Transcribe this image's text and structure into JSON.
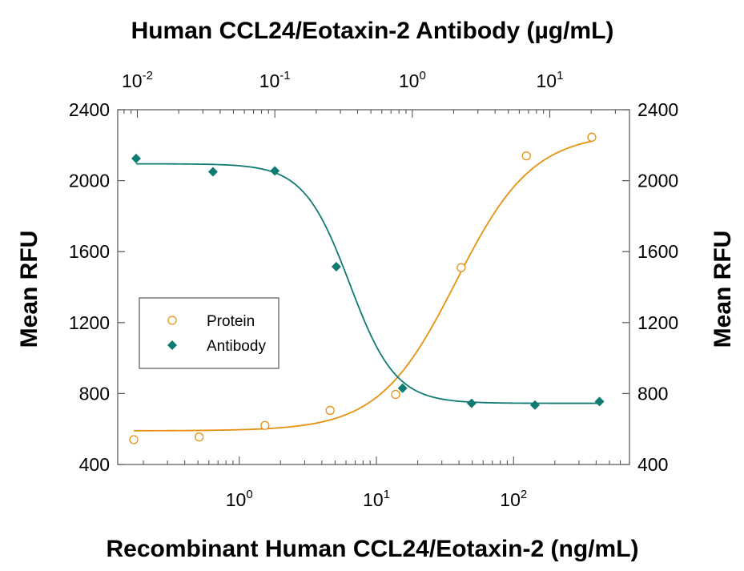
{
  "chart_data": {
    "type": "scatter",
    "title_top": "Human CCL24/Eotaxin-2 Antibody (µg/mL)",
    "xlabel": "Recombinant Human CCL24/Eotaxin-2 (ng/mL)",
    "ylabel_left": "Mean RFU",
    "ylabel_right": "Mean RFU",
    "y_axis": {
      "min": 400,
      "max": 2400,
      "ticks": [
        400,
        800,
        1200,
        1600,
        2000,
        2400
      ],
      "tick_labels": [
        "400",
        "800",
        "1200",
        "1600",
        "2000",
        "2400"
      ]
    },
    "x_bottom_axis": {
      "scale": "log",
      "range": [
        0.13,
        700
      ],
      "ticks": [
        1,
        10,
        100
      ],
      "tick_labels": [
        {
          "base": "10",
          "exp": "0"
        },
        {
          "base": "10",
          "exp": "1"
        },
        {
          "base": "10",
          "exp": "2"
        }
      ]
    },
    "x_top_axis": {
      "scale": "log",
      "range": [
        0.0072,
        38
      ],
      "ticks": [
        0.01,
        0.1,
        1,
        10
      ],
      "tick_labels": [
        {
          "base": "10",
          "exp": "-2"
        },
        {
          "base": "10",
          "exp": "-1"
        },
        {
          "base": "10",
          "exp": "0"
        },
        {
          "base": "10",
          "exp": "1"
        }
      ]
    },
    "legend": {
      "placement": "center-left",
      "entries": [
        {
          "label": "Protein",
          "color": "#E8900F",
          "marker": "open-circle"
        },
        {
          "label": "Antibody",
          "color": "#0E7A72",
          "marker": "filled-diamond"
        }
      ]
    },
    "series": [
      {
        "name": "Protein",
        "axis": "bottom",
        "color": "#E8900F",
        "marker": "open-circle",
        "x": [
          0.17,
          0.51,
          1.54,
          4.6,
          13.8,
          41.5,
          124,
          372
        ],
        "y": [
          540,
          555,
          620,
          705,
          795,
          1510,
          2140,
          2245
        ]
      },
      {
        "name": "Antibody",
        "axis": "top",
        "color": "#0E7A72",
        "marker": "filled-diamond",
        "x": [
          0.0098,
          0.0355,
          0.1,
          0.28,
          0.85,
          2.7,
          7.8,
          23
        ],
        "y": [
          2125,
          2050,
          2055,
          1515,
          830,
          745,
          735,
          755
        ]
      }
    ],
    "fit_curves": [
      {
        "series": "Protein",
        "axis": "bottom",
        "color": "#E8900F",
        "bottom": 590,
        "top": 2270,
        "ec50": 38,
        "hill": 1.55
      },
      {
        "series": "Antibody",
        "axis": "top",
        "color": "#0E7A72",
        "bottom": 745,
        "top": 2095,
        "ec50": 0.35,
        "hill": -2.6
      }
    ],
    "grid": false
  }
}
